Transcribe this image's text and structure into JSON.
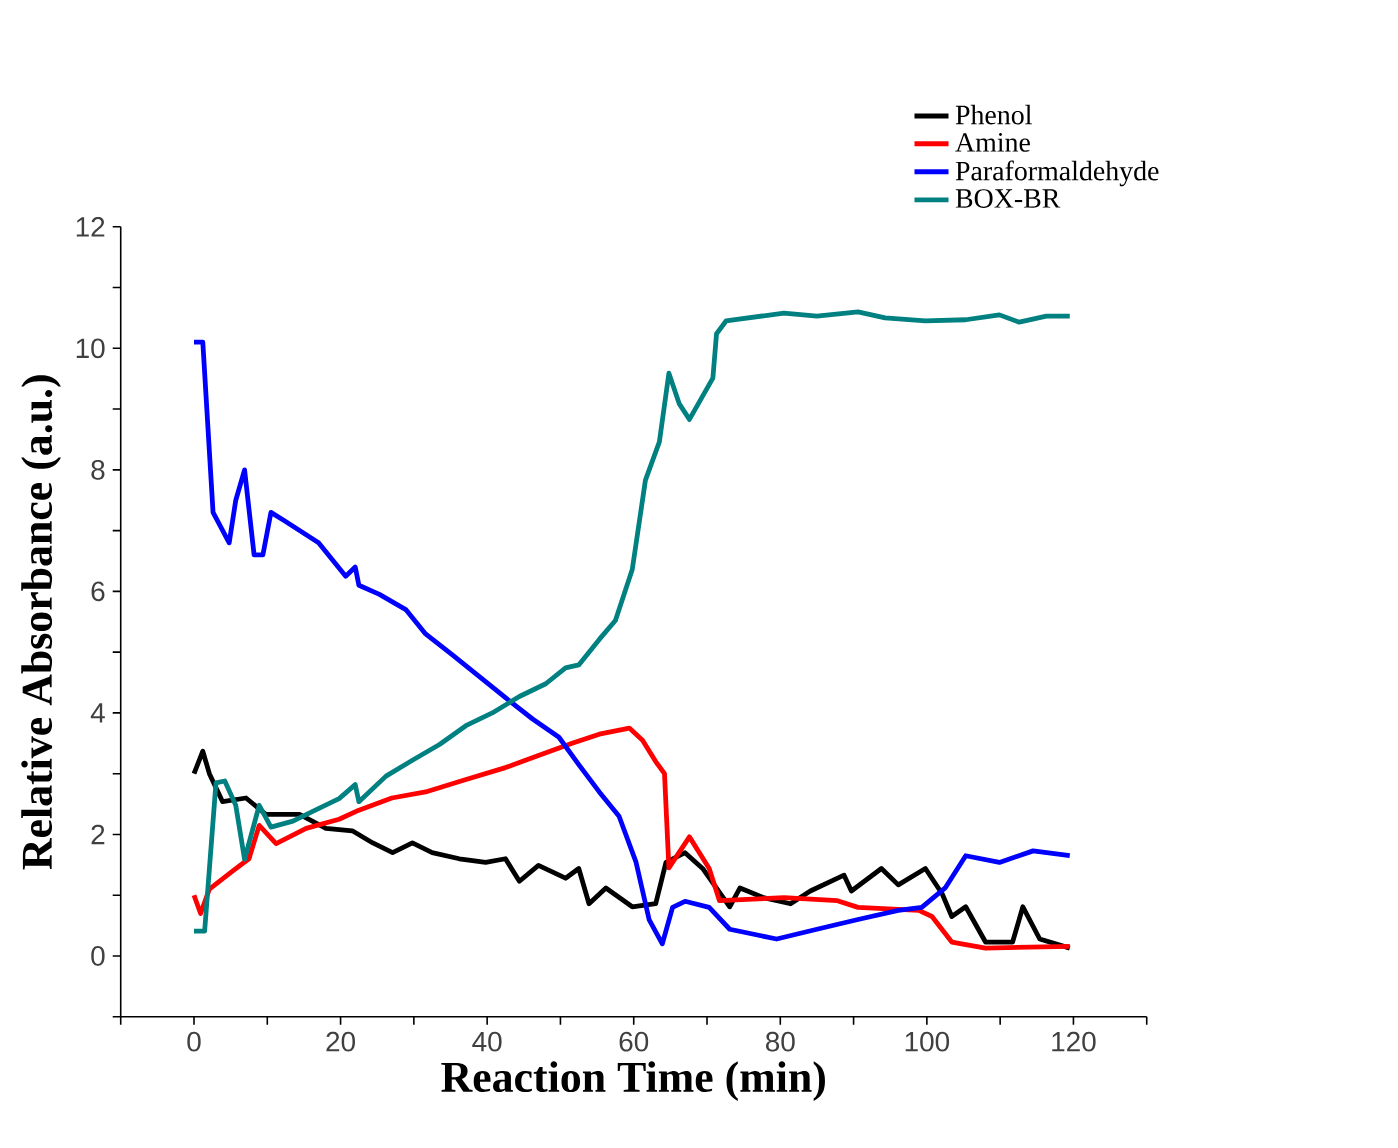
{
  "chart_data": {
    "type": "line",
    "xlabel": "Reaction Time (min)",
    "ylabel": "Relative Absorbance (a.u.)",
    "xlim": [
      -10,
      130
    ],
    "ylim": [
      -1,
      12
    ],
    "xticks": [
      {
        "value": -10,
        "label": null
      },
      0,
      {
        "value": 10,
        "label": null
      },
      20,
      {
        "value": 30,
        "label": null
      },
      40,
      {
        "value": 50,
        "label": null
      },
      60,
      {
        "value": 70,
        "label": null
      },
      80,
      {
        "value": 90,
        "label": null
      },
      100,
      {
        "value": 110,
        "label": null
      },
      120,
      {
        "value": 130,
        "label": null
      }
    ],
    "yticks": [
      {
        "value": -1,
        "label": null
      },
      0,
      {
        "value": 1,
        "label": null
      },
      2,
      {
        "value": 3,
        "label": null
      },
      4,
      {
        "value": 5,
        "label": null
      },
      6,
      {
        "value": 7,
        "label": null
      },
      8,
      {
        "value": 9,
        "label": null
      },
      10,
      {
        "value": 11,
        "label": null
      },
      12
    ],
    "legend": "top right",
    "marker": "none",
    "line_style": "solid",
    "series": [
      {
        "name": "Phenol",
        "color": "#000000",
        "x": [
          0,
          1.2,
          2.1,
          3.9,
          7.1,
          9.8,
          14.4,
          18,
          21.6,
          24.4,
          27.1,
          29.8,
          32.5,
          36.2,
          39.8,
          42.5,
          44.4,
          47,
          50.7,
          52.5,
          53.9,
          56.2,
          59.8,
          63,
          64.4,
          67,
          69.4,
          73.1,
          74.5,
          77.7,
          81.4,
          84.1,
          88.7,
          89.7,
          93.8,
          96.1,
          99.8,
          102.1,
          103.4,
          105.3,
          108,
          111.7,
          113.1,
          115.4,
          119.5
        ],
        "values": [
          3.0,
          3.37,
          3.0,
          2.54,
          2.6,
          2.33,
          2.33,
          2.1,
          2.06,
          1.86,
          1.7,
          1.86,
          1.7,
          1.6,
          1.54,
          1.6,
          1.23,
          1.49,
          1.28,
          1.44,
          0.86,
          1.12,
          0.81,
          0.86,
          1.54,
          1.7,
          1.44,
          0.81,
          1.12,
          0.96,
          0.86,
          1.07,
          1.33,
          1.07,
          1.44,
          1.17,
          1.44,
          1.02,
          0.65,
          0.81,
          0.23,
          0.23,
          0.81,
          0.28,
          0.13
        ]
      },
      {
        "name": "Amine",
        "color": "#ff0000",
        "x": [
          0,
          0.9,
          2.1,
          5.3,
          7.5,
          8.9,
          11.2,
          15.3,
          19.8,
          22.5,
          27,
          31.6,
          37,
          42.5,
          47,
          51.6,
          55.3,
          59.4,
          61.2,
          63,
          64.2,
          64.8,
          67.6,
          70.3,
          71.7,
          80.5,
          87.8,
          90.6,
          98.9,
          100.7,
          103.4,
          108,
          119.5
        ],
        "values": [
          1.0,
          0.7,
          1.1,
          1.4,
          1.6,
          2.15,
          1.85,
          2.1,
          2.25,
          2.4,
          2.6,
          2.7,
          2.9,
          3.1,
          3.3,
          3.5,
          3.65,
          3.75,
          3.55,
          3.2,
          3.0,
          1.45,
          1.96,
          1.44,
          0.91,
          0.96,
          0.91,
          0.8,
          0.75,
          0.65,
          0.23,
          0.13,
          0.16
        ]
      },
      {
        "name": "Paraformaldehyde",
        "color": "#0000ff",
        "x": [
          0,
          1.2,
          2.6,
          4.8,
          5.7,
          6.9,
          8.2,
          9.4,
          10.5,
          12.5,
          17,
          20.7,
          22,
          22.5,
          25.3,
          28.9,
          31.6,
          35.3,
          38.9,
          42.5,
          46.2,
          49.8,
          52.5,
          55.3,
          58,
          60.3,
          62.1,
          63.9,
          65.3,
          67,
          70.3,
          73.1,
          79.5,
          85,
          90.6,
          96.1,
          99.3,
          102.5,
          105.3,
          109.9,
          114.5,
          119.5
        ],
        "values": [
          10.1,
          10.1,
          7.3,
          6.8,
          7.5,
          8.0,
          6.6,
          6.6,
          7.3,
          7.15,
          6.8,
          6.25,
          6.4,
          6.1,
          5.95,
          5.7,
          5.3,
          4.95,
          4.6,
          4.25,
          3.9,
          3.6,
          3.15,
          2.7,
          2.3,
          1.55,
          0.6,
          0.2,
          0.8,
          0.9,
          0.8,
          0.44,
          0.28,
          0.44,
          0.6,
          0.75,
          0.8,
          1.12,
          1.65,
          1.54,
          1.73,
          1.65
        ]
      },
      {
        "name": "BOX-BR",
        "color": "#008080",
        "x": [
          0,
          1.45,
          3,
          4.2,
          5.7,
          6.9,
          8.9,
          10.5,
          13.5,
          16.2,
          19.8,
          22,
          22.5,
          26.2,
          29.8,
          33.5,
          37.1,
          40.7,
          44.4,
          48,
          50.7,
          52.5,
          55.3,
          57.5,
          59.8,
          61.6,
          63.5,
          64.8,
          66.2,
          67.6,
          70.8,
          71.3,
          72.6,
          80.5,
          85,
          90.6,
          94.3,
          99.8,
          105.3,
          109.9,
          112.6,
          116.3,
          119.5
        ],
        "values": [
          0.41,
          0.41,
          2.85,
          2.88,
          2.48,
          1.59,
          2.48,
          2.12,
          2.22,
          2.38,
          2.59,
          2.82,
          2.54,
          2.96,
          3.22,
          3.48,
          3.79,
          4.0,
          4.27,
          4.48,
          4.74,
          4.79,
          5.21,
          5.52,
          6.36,
          7.83,
          8.46,
          9.59,
          9.09,
          8.83,
          9.51,
          10.24,
          10.45,
          10.58,
          10.53,
          10.6,
          10.5,
          10.45,
          10.47,
          10.55,
          10.43,
          10.53,
          10.53
        ]
      }
    ]
  }
}
